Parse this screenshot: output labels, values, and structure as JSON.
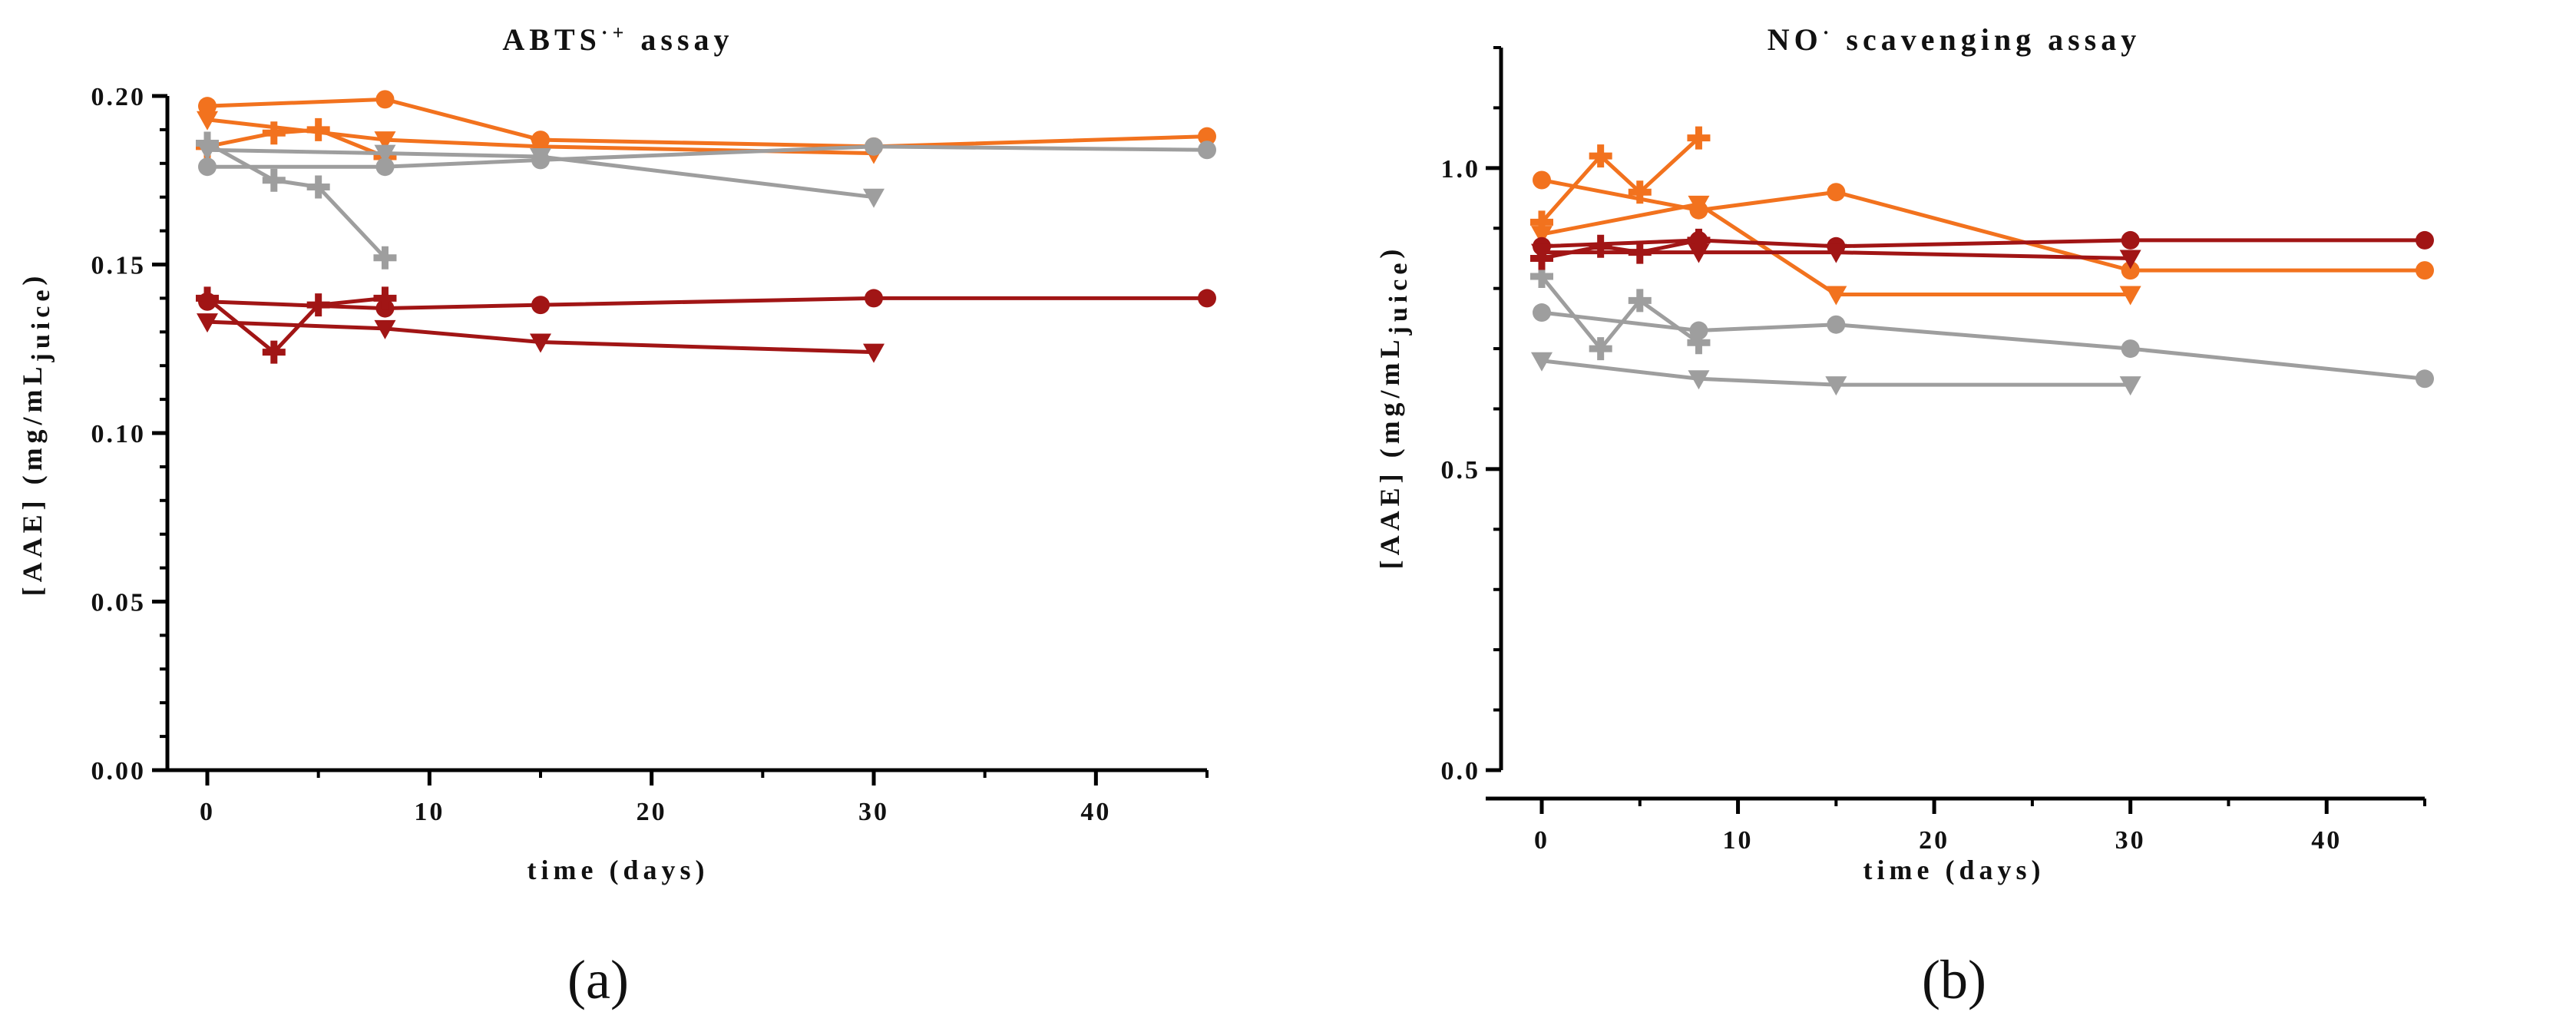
{
  "colors": {
    "orange": "#F2721E",
    "gray": "#9E9E9E",
    "darkred": "#A11515"
  },
  "chart_data": [
    {
      "type": "line",
      "title": "ABTS",
      "title_sup": "·+",
      "title_rest": " assay",
      "xlabel": "time (days)",
      "ylabel_main": "[AAE] (mg/mL",
      "ylabel_sub": "juice",
      "ylabel_end": ")",
      "xlim": [
        -2,
        45
      ],
      "ylim": [
        0,
        0.2
      ],
      "x_ticks": [
        0,
        10,
        20,
        30,
        40
      ],
      "x_tick_labels": [
        "0",
        "10",
        "20",
        "30",
        "40"
      ],
      "y_ticks": [
        0,
        0.05,
        0.1,
        0.15,
        0.2
      ],
      "y_tick_labels": [
        "0.00",
        "0.05",
        "0.10",
        "0.15",
        "0.20"
      ],
      "y_minor": 0.01,
      "panel_label": "(a)",
      "series": [
        {
          "color": "orange",
          "marker": "circle",
          "x": [
            0,
            8,
            15,
            30,
            45
          ],
          "y": [
            0.197,
            0.199,
            0.187,
            0.185,
            0.188
          ]
        },
        {
          "color": "orange",
          "marker": "triangle",
          "x": [
            0,
            8,
            15,
            30
          ],
          "y": [
            0.193,
            0.187,
            0.185,
            0.183
          ]
        },
        {
          "color": "orange",
          "marker": "cross",
          "x": [
            0,
            3,
            5,
            8
          ],
          "y": [
            0.185,
            0.189,
            0.19,
            0.182
          ]
        },
        {
          "color": "gray",
          "marker": "circle",
          "x": [
            0,
            8,
            15,
            30,
            45
          ],
          "y": [
            0.179,
            0.179,
            0.181,
            0.185,
            0.184
          ]
        },
        {
          "color": "gray",
          "marker": "triangle",
          "x": [
            0,
            8,
            15,
            30
          ],
          "y": [
            0.184,
            0.183,
            0.182,
            0.17
          ]
        },
        {
          "color": "gray",
          "marker": "cross",
          "x": [
            0,
            3,
            5,
            8
          ],
          "y": [
            0.186,
            0.175,
            0.173,
            0.152
          ]
        },
        {
          "color": "darkred",
          "marker": "circle",
          "x": [
            0,
            8,
            15,
            30,
            45
          ],
          "y": [
            0.139,
            0.137,
            0.138,
            0.14,
            0.14
          ]
        },
        {
          "color": "darkred",
          "marker": "triangle",
          "x": [
            0,
            8,
            15,
            30
          ],
          "y": [
            0.133,
            0.131,
            0.127,
            0.124
          ]
        },
        {
          "color": "darkred",
          "marker": "cross",
          "x": [
            0,
            3,
            5,
            8
          ],
          "y": [
            0.14,
            0.124,
            0.138,
            0.14
          ]
        }
      ]
    },
    {
      "type": "line",
      "title": "NO",
      "title_sup": "·",
      "title_rest": " scavenging assay",
      "xlabel": "time (days)",
      "ylabel_main": "[AAE] (mg/mL",
      "ylabel_sub": "juice",
      "ylabel_end": ")",
      "xlim": [
        -2,
        45
      ],
      "ylim": [
        0,
        1.2
      ],
      "x_ticks": [
        0,
        10,
        20,
        30,
        40
      ],
      "x_tick_labels": [
        "0",
        "10",
        "20",
        "30",
        "40"
      ],
      "y_ticks": [
        0,
        0.5,
        1.0
      ],
      "y_tick_labels": [
        "0.0",
        "0.5",
        "1.0"
      ],
      "y_minor": 0.1,
      "panel_label": "(b)",
      "series": [
        {
          "color": "orange",
          "marker": "circle",
          "x": [
            0,
            8,
            15,
            30,
            45
          ],
          "y": [
            0.98,
            0.93,
            0.96,
            0.83,
            0.83
          ]
        },
        {
          "color": "orange",
          "marker": "triangle",
          "x": [
            0,
            8,
            15,
            30
          ],
          "y": [
            0.89,
            0.94,
            0.79,
            0.79
          ]
        },
        {
          "color": "orange",
          "marker": "cross",
          "x": [
            0,
            3,
            5,
            8
          ],
          "y": [
            0.91,
            1.02,
            0.96,
            1.05
          ]
        },
        {
          "color": "gray",
          "marker": "circle",
          "x": [
            0,
            8,
            15,
            30,
            45
          ],
          "y": [
            0.76,
            0.73,
            0.74,
            0.7,
            0.65
          ]
        },
        {
          "color": "gray",
          "marker": "triangle",
          "x": [
            0,
            8,
            15,
            30
          ],
          "y": [
            0.68,
            0.65,
            0.64,
            0.64
          ]
        },
        {
          "color": "gray",
          "marker": "cross",
          "x": [
            0,
            3,
            5,
            8
          ],
          "y": [
            0.82,
            0.7,
            0.78,
            0.71
          ]
        },
        {
          "color": "darkred",
          "marker": "circle",
          "x": [
            0,
            8,
            15,
            30,
            45
          ],
          "y": [
            0.87,
            0.88,
            0.87,
            0.88,
            0.88
          ]
        },
        {
          "color": "darkred",
          "marker": "triangle",
          "x": [
            0,
            8,
            15,
            30
          ],
          "y": [
            0.86,
            0.86,
            0.86,
            0.85
          ]
        },
        {
          "color": "darkred",
          "marker": "cross",
          "x": [
            0,
            3,
            5,
            8
          ],
          "y": [
            0.85,
            0.87,
            0.86,
            0.88
          ]
        }
      ]
    }
  ]
}
